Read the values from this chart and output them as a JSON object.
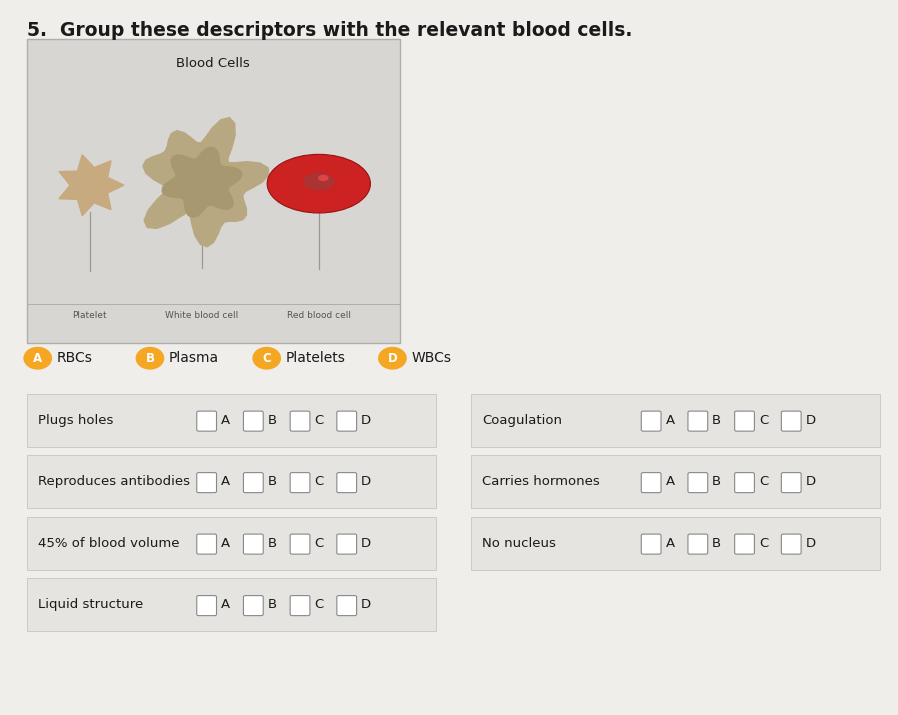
{
  "title": "5.  Group these descriptors with the relevant blood cells.",
  "title_fontsize": 13.5,
  "bg_color": "#f0eeeb",
  "image_bg": "#d8d6d2",
  "blood_cells_label": "Blood Cells",
  "legend_items": [
    {
      "letter": "A",
      "label": "RBCs"
    },
    {
      "letter": "B",
      "label": "Plasma"
    },
    {
      "letter": "C",
      "label": "Platelets"
    },
    {
      "letter": "D",
      "label": "WBCs"
    }
  ],
  "legend_badge_color": "#f5a623",
  "left_rows": [
    {
      "label": "Plugs holes",
      "options": [
        "A",
        "B",
        "C",
        "D"
      ]
    },
    {
      "label": "Reproduces antibodies",
      "options": [
        "A",
        "B",
        "C",
        "D"
      ]
    },
    {
      "label": "45% of blood volume",
      "options": [
        "A",
        "B",
        "C",
        "D"
      ]
    },
    {
      "label": "Liquid structure",
      "options": [
        "A",
        "B",
        "C",
        "D"
      ]
    }
  ],
  "right_rows": [
    {
      "label": "Coagulation",
      "options": [
        "A",
        "B",
        "C",
        "D"
      ]
    },
    {
      "label": "Carries hormones",
      "options": [
        "A",
        "B",
        "C",
        "D"
      ]
    },
    {
      "label": "No nucleus",
      "options": [
        "A",
        "B",
        "C",
        "D"
      ]
    }
  ],
  "row_bg_color": "#e6e4e0",
  "row_border_color": "#c8c5c0",
  "checkbox_color": "#888888",
  "text_color": "#1a1a1a",
  "label_fontsize": 9.5,
  "option_fontsize": 9.5
}
